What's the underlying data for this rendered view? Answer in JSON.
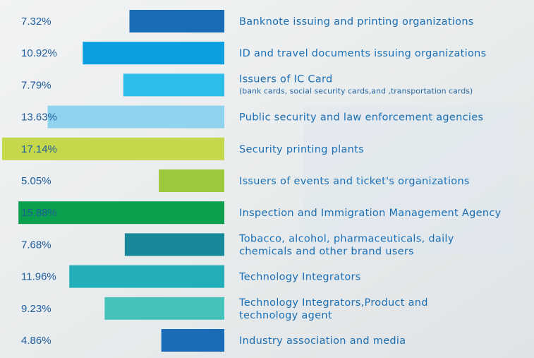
{
  "chart_data": {
    "type": "bar",
    "orientation": "horizontal-left",
    "categories": [
      "Banknote issuing and printing organizations",
      "ID and travel documents issuing organizations",
      [
        "Issuers of IC Card",
        "(bank cards, social security cards,and ,transportation cards)"
      ],
      "Public security and law enforcement agencies",
      "Security printing plants",
      "Issuers of events and ticket's organizations",
      "Inspection and Immigration Management Agency",
      [
        "Tobacco, alcohol, pharmaceuticals, daily",
        "chemicals and other brand users"
      ],
      "Technology Integrators",
      [
        "Technology Integrators,Product and",
        " technology agent"
      ],
      "Industry association and media"
    ],
    "values": [
      7.32,
      10.92,
      7.79,
      13.63,
      17.14,
      5.05,
      15.88,
      7.68,
      11.96,
      9.23,
      4.86
    ],
    "value_labels": [
      "7.32%",
      "10.92%",
      "7.79%",
      "13.63%",
      "17.14%",
      "5.05%",
      "15.88%",
      "7.68%",
      "11.96%",
      "9.23%",
      "4.86%"
    ],
    "colors": [
      "#1b6cb8",
      "#0b9fe0",
      "#2cbde9",
      "#8fd3ee",
      "#c5d84b",
      "#9dc83d",
      "#0aa04d",
      "#17899a",
      "#22afb7",
      "#45c2bc",
      "#1b6cb8"
    ]
  }
}
